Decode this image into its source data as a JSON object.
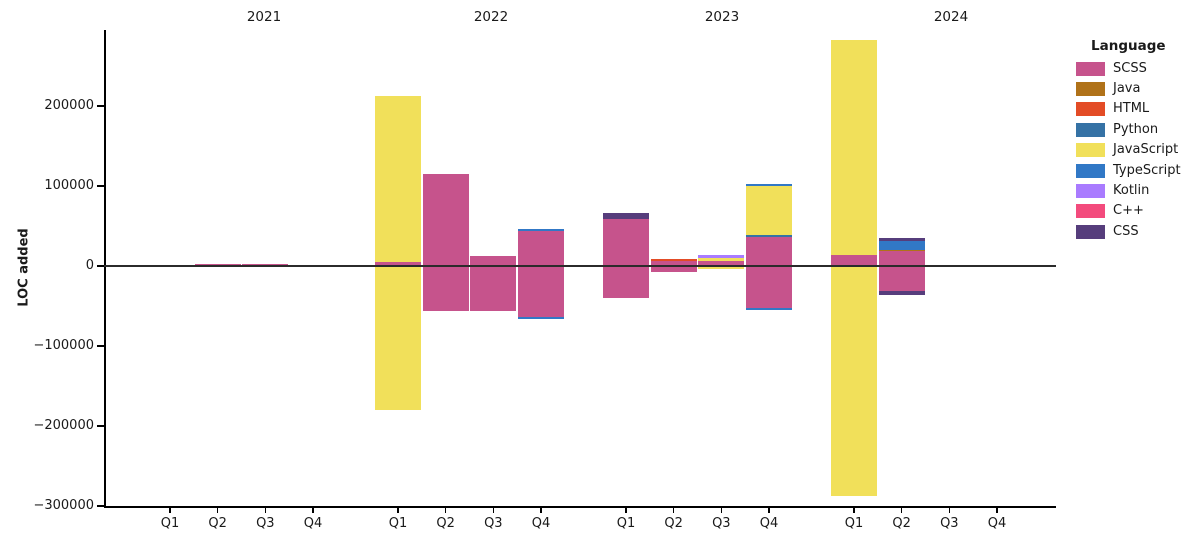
{
  "chart_data": {
    "type": "bar",
    "stacked": true,
    "title": "",
    "ylabel": "LOC added",
    "xlabel": "",
    "grid": false,
    "ylim": [
      -300000,
      295000
    ],
    "y_ticks": [
      {
        "value": 200000,
        "label": "200000"
      },
      {
        "value": 100000,
        "label": "100000"
      },
      {
        "value": 0,
        "label": "0"
      },
      {
        "value": -100000,
        "label": "−100000"
      },
      {
        "value": -200000,
        "label": "−200000"
      },
      {
        "value": -300000,
        "label": "−300000"
      }
    ],
    "year_groups": [
      "2021",
      "2022",
      "2023",
      "2024"
    ],
    "quarter_labels": [
      "Q1",
      "Q2",
      "Q3",
      "Q4"
    ],
    "legend": {
      "title": "Language",
      "position": "right",
      "entries": [
        {
          "label": "SCSS",
          "color": "#c6538c"
        },
        {
          "label": "Java",
          "color": "#b07219"
        },
        {
          "label": "HTML",
          "color": "#e34c26"
        },
        {
          "label": "Python",
          "color": "#3572a5"
        },
        {
          "label": "JavaScript",
          "color": "#f1e05a"
        },
        {
          "label": "TypeScript",
          "color": "#3178c6"
        },
        {
          "label": "Kotlin",
          "color": "#a97bff"
        },
        {
          "label": "C++",
          "color": "#f34b7d"
        },
        {
          "label": "CSS",
          "color": "#563d7c"
        }
      ]
    },
    "bars": [
      {
        "year": "2021",
        "quarter": "Q1",
        "segments": []
      },
      {
        "year": "2021",
        "quarter": "Q2",
        "segments": [
          {
            "language": "SCSS",
            "value": 2000
          }
        ]
      },
      {
        "year": "2021",
        "quarter": "Q3",
        "segments": [
          {
            "language": "SCSS",
            "value": 2000
          }
        ]
      },
      {
        "year": "2021",
        "quarter": "Q4",
        "segments": []
      },
      {
        "year": "2022",
        "quarter": "Q1",
        "segments": [
          {
            "language": "SCSS",
            "value": 4500
          },
          {
            "language": "JavaScript",
            "value": 208000
          },
          {
            "language": "JavaScript",
            "value": -180000
          }
        ]
      },
      {
        "year": "2022",
        "quarter": "Q2",
        "segments": [
          {
            "language": "SCSS",
            "value": 114500
          },
          {
            "language": "SCSS",
            "value": -56000
          }
        ]
      },
      {
        "year": "2022",
        "quarter": "Q3",
        "segments": [
          {
            "language": "SCSS",
            "value": 13000
          },
          {
            "language": "SCSS",
            "value": -56000
          }
        ]
      },
      {
        "year": "2022",
        "quarter": "Q4",
        "segments": [
          {
            "language": "SCSS",
            "value": 43500
          },
          {
            "language": "TypeScript",
            "value": 3000
          },
          {
            "language": "SCSS",
            "value": -63500
          },
          {
            "language": "TypeScript",
            "value": -2500
          }
        ]
      },
      {
        "year": "2023",
        "quarter": "Q1",
        "segments": [
          {
            "language": "SCSS",
            "value": 58750
          },
          {
            "language": "CSS",
            "value": 7000
          },
          {
            "language": "SCSS",
            "value": -39500
          }
        ]
      },
      {
        "year": "2023",
        "quarter": "Q2",
        "segments": [
          {
            "language": "SCSS",
            "value": 6250
          },
          {
            "language": "HTML",
            "value": 2200
          },
          {
            "language": "SCSS",
            "value": -7000
          }
        ]
      },
      {
        "year": "2023",
        "quarter": "Q3",
        "segments": [
          {
            "language": "SCSS",
            "value": 6000
          },
          {
            "language": "JavaScript",
            "value": 3500
          },
          {
            "language": "Kotlin",
            "value": 4500
          },
          {
            "language": "JavaScript",
            "value": -3200
          }
        ]
      },
      {
        "year": "2023",
        "quarter": "Q4",
        "segments": [
          {
            "language": "SCSS",
            "value": 36000
          },
          {
            "language": "Python",
            "value": 2750
          },
          {
            "language": "JavaScript",
            "value": 61500
          },
          {
            "language": "TypeScript",
            "value": 2600
          },
          {
            "language": "SCSS",
            "value": -52000
          },
          {
            "language": "TypeScript",
            "value": -2600
          }
        ]
      },
      {
        "year": "2024",
        "quarter": "Q1",
        "segments": [
          {
            "language": "SCSS",
            "value": 13750
          },
          {
            "language": "JavaScript",
            "value": 268750
          },
          {
            "language": "JavaScript",
            "value": -287500
          }
        ]
      },
      {
        "year": "2024",
        "quarter": "Q2",
        "segments": [
          {
            "language": "SCSS",
            "value": 18400
          },
          {
            "language": "Java",
            "value": 1600
          },
          {
            "language": "TypeScript",
            "value": 11250
          },
          {
            "language": "CSS",
            "value": 3400
          },
          {
            "language": "SCSS",
            "value": -31250
          },
          {
            "language": "CSS",
            "value": -5400
          }
        ]
      },
      {
        "year": "2024",
        "quarter": "Q3",
        "segments": []
      },
      {
        "year": "2024",
        "quarter": "Q4",
        "segments": []
      }
    ]
  }
}
